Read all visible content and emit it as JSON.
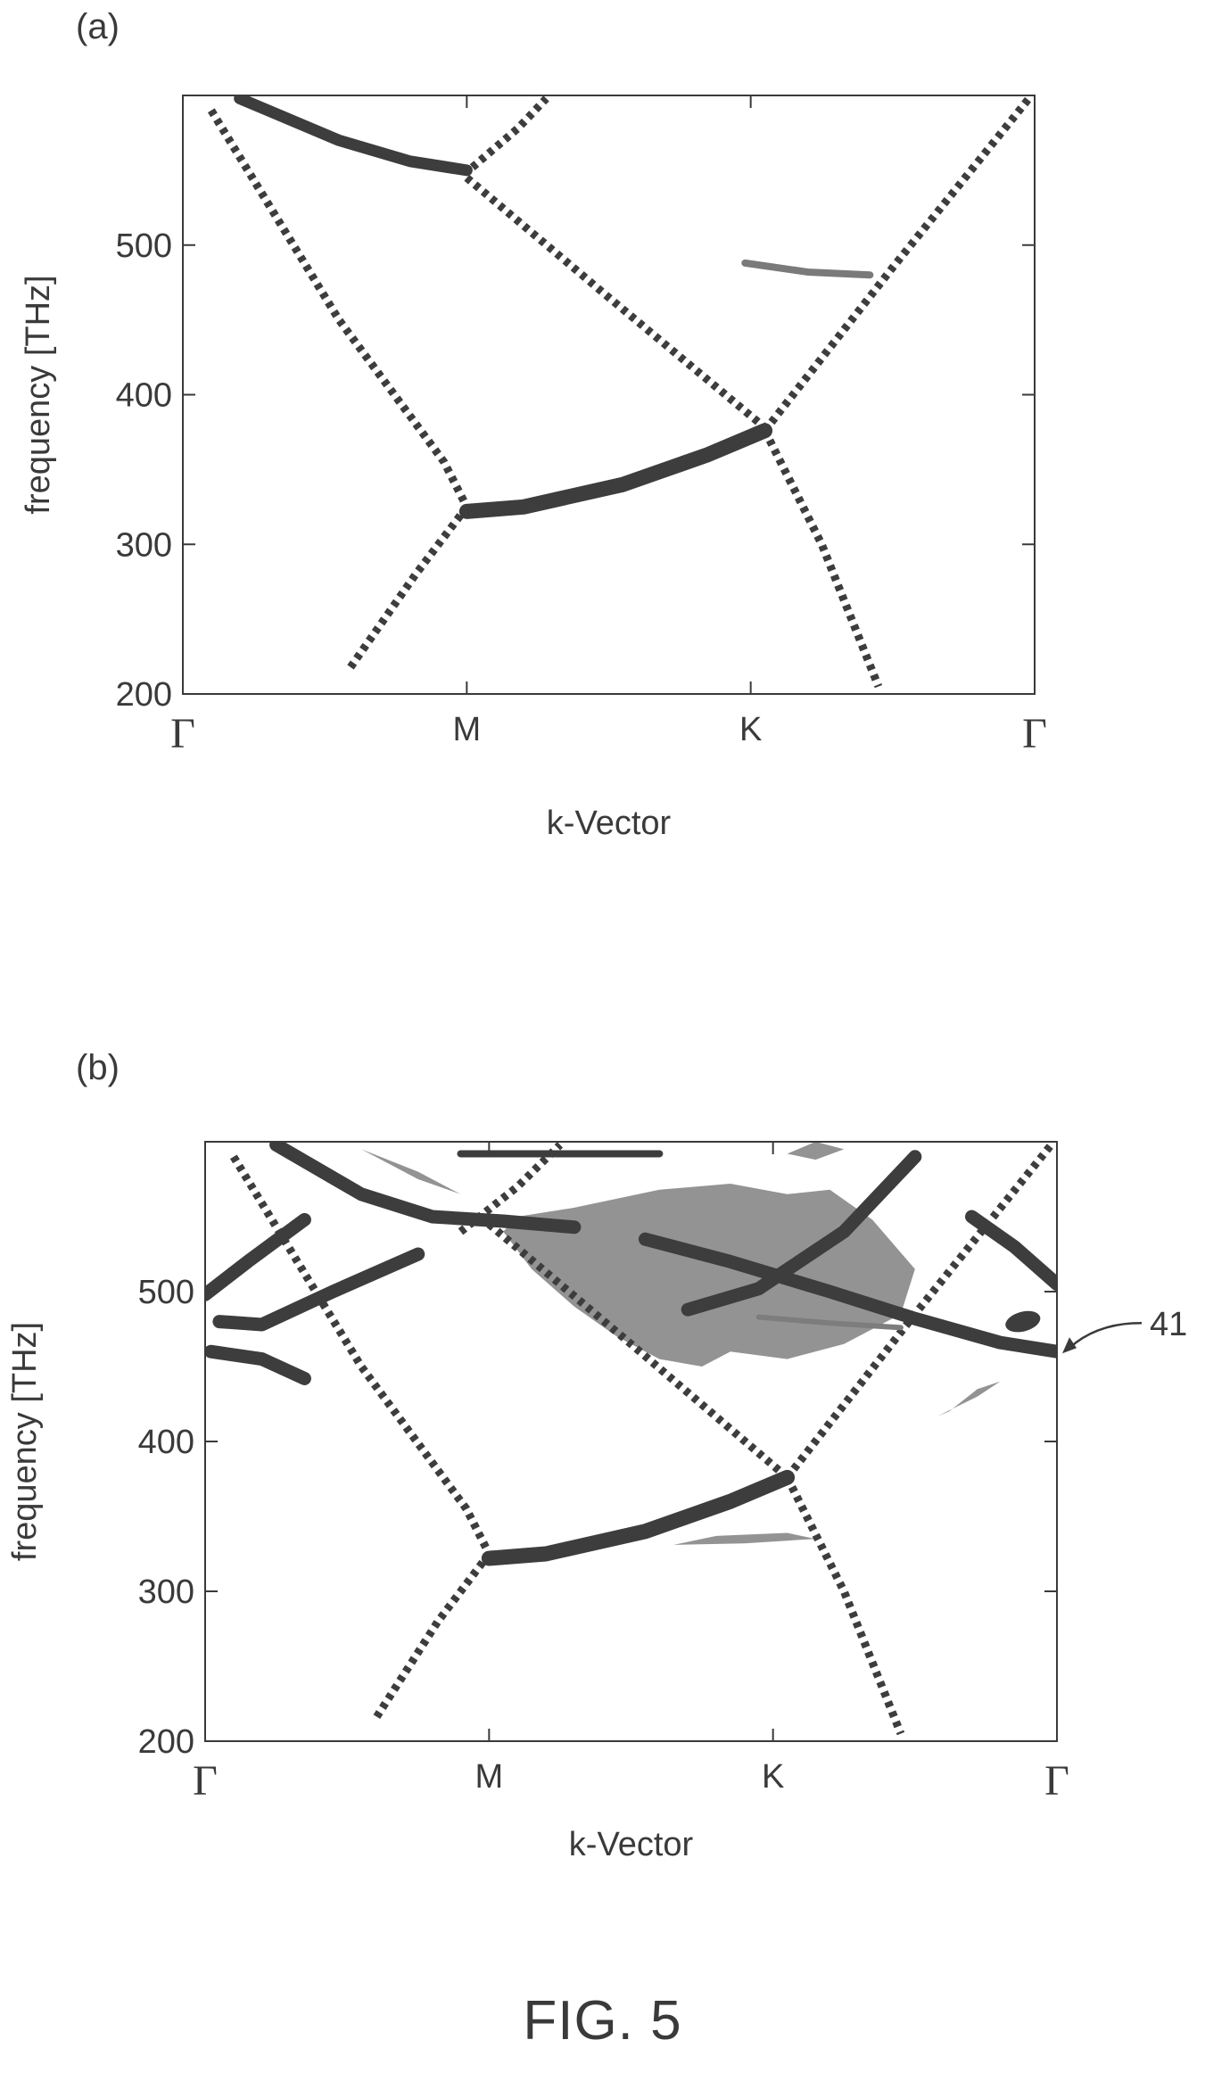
{
  "figure": {
    "panel_a_label": "(a)",
    "panel_b_label": "(b)",
    "caption": "FIG. 5",
    "callout_label": "41"
  },
  "chart_data": [
    {
      "panel": "(a)",
      "type": "line",
      "xlabel": "k-Vector",
      "ylabel": "frequency [THz]",
      "ylim": [
        200,
        600
      ],
      "yticks": [
        200,
        300,
        400,
        500
      ],
      "xticks": [
        {
          "label": "Γ",
          "x": 0
        },
        {
          "label": "M",
          "x": 1
        },
        {
          "label": "K",
          "x": 2
        },
        {
          "label": "Γ",
          "x": 3
        }
      ],
      "grid": false,
      "colors": {
        "dark": "#3d3d3d",
        "mid": "#7a7a7a"
      },
      "series": [
        {
          "style": "dashed",
          "width": 9,
          "color": "dark",
          "x": [
            0.1,
            0.55,
            0.92,
            1.0
          ],
          "y": [
            590,
            450,
            355,
            325
          ]
        },
        {
          "style": "dashed",
          "width": 9,
          "color": "dark",
          "x": [
            1.0,
            0.82,
            0.58
          ],
          "y": [
            325,
            280,
            215
          ]
        },
        {
          "style": "solid",
          "width": 13,
          "color": "dark",
          "x": [
            0.2,
            0.55,
            0.8,
            1.0
          ],
          "y": [
            598,
            570,
            556,
            550
          ]
        },
        {
          "style": "dashed",
          "width": 9,
          "color": "dark",
          "x": [
            1.02,
            1.18,
            1.28
          ],
          "y": [
            552,
            578,
            598
          ]
        },
        {
          "style": "dashed",
          "width": 9,
          "color": "dark",
          "x": [
            1.0,
            1.5,
            2.05
          ],
          "y": [
            545,
            465,
            378
          ]
        },
        {
          "style": "solid",
          "width": 17,
          "color": "dark",
          "x": [
            1.0,
            1.2,
            1.55,
            1.85,
            2.05
          ],
          "y": [
            322,
            325,
            340,
            360,
            376
          ]
        },
        {
          "style": "dashed",
          "width": 9,
          "color": "dark",
          "x": [
            2.05,
            2.5,
            2.98
          ],
          "y": [
            376,
            485,
            598
          ]
        },
        {
          "style": "dashed",
          "width": 9,
          "color": "dark",
          "x": [
            2.05,
            2.25,
            2.45
          ],
          "y": [
            376,
            300,
            205
          ]
        },
        {
          "style": "solid",
          "width": 8,
          "color": "mid",
          "x": [
            1.98,
            2.2,
            2.42
          ],
          "y": [
            488,
            482,
            480
          ]
        }
      ]
    },
    {
      "panel": "(b)",
      "type": "line",
      "xlabel": "k-Vector",
      "ylabel": "frequency [THz]",
      "ylim": [
        200,
        600
      ],
      "yticks": [
        200,
        300,
        400,
        500
      ],
      "xticks": [
        {
          "label": "Γ",
          "x": 0
        },
        {
          "label": "M",
          "x": 1
        },
        {
          "label": "K",
          "x": 2
        },
        {
          "label": "Γ",
          "x": 3
        }
      ],
      "grid": false,
      "colors": {
        "dark": "#3d3d3d",
        "mid": "#7d7d7d",
        "light": "#939393"
      },
      "annotation": {
        "text": "41",
        "target": {
          "x": 3.0,
          "y": 460
        }
      },
      "series": [
        {
          "style": "dashed",
          "width": 9,
          "color": "dark",
          "x": [
            0.1,
            0.55,
            0.92,
            1.0
          ],
          "y": [
            590,
            450,
            355,
            325
          ]
        },
        {
          "style": "dashed",
          "width": 9,
          "color": "dark",
          "x": [
            1.0,
            0.82,
            0.6
          ],
          "y": [
            325,
            280,
            215
          ]
        },
        {
          "style": "solid",
          "width": 15,
          "color": "dark",
          "x": [
            0.25,
            0.55,
            0.8,
            1.05,
            1.3
          ],
          "y": [
            598,
            565,
            550,
            547,
            543
          ]
        },
        {
          "style": "dashed",
          "width": 9,
          "color": "dark",
          "x": [
            0.9,
            1.1,
            1.25
          ],
          "y": [
            540,
            570,
            598
          ]
        },
        {
          "style": "solid",
          "width": 8,
          "color": "dark",
          "x": [
            0.9,
            1.6
          ],
          "y": [
            592,
            592
          ]
        },
        {
          "style": "dashed",
          "width": 9,
          "color": "dark",
          "x": [
            1.0,
            1.5,
            2.05
          ],
          "y": [
            545,
            465,
            376
          ]
        },
        {
          "style": "solid",
          "width": 17,
          "color": "dark",
          "x": [
            1.0,
            1.2,
            1.55,
            1.85,
            2.05
          ],
          "y": [
            322,
            325,
            340,
            360,
            376
          ]
        },
        {
          "style": "dashed",
          "width": 9,
          "color": "dark",
          "x": [
            2.05,
            2.5,
            2.98
          ],
          "y": [
            376,
            485,
            598
          ]
        },
        {
          "style": "dashed",
          "width": 9,
          "color": "dark",
          "x": [
            2.05,
            2.25,
            2.45
          ],
          "y": [
            376,
            300,
            205
          ]
        },
        {
          "style": "solid",
          "width": 15,
          "color": "dark",
          "x": [
            1.55,
            1.85,
            2.2,
            2.5,
            2.8,
            3.0
          ],
          "y": [
            535,
            520,
            500,
            482,
            466,
            460
          ]
        },
        {
          "style": "solid",
          "width": 15,
          "color": "dark",
          "x": [
            1.7,
            1.95,
            2.25,
            2.5
          ],
          "y": [
            488,
            502,
            540,
            590
          ]
        },
        {
          "style": "solid",
          "width": 15,
          "color": "dark",
          "x": [
            0.0,
            0.15,
            0.35
          ],
          "y": [
            498,
            520,
            548
          ]
        },
        {
          "style": "solid",
          "width": 15,
          "color": "dark",
          "x": [
            0.05,
            0.2,
            0.45,
            0.75
          ],
          "y": [
            480,
            478,
            500,
            525
          ]
        },
        {
          "style": "solid",
          "width": 15,
          "color": "dark",
          "x": [
            0.02,
            0.2,
            0.35
          ],
          "y": [
            460,
            455,
            442
          ]
        },
        {
          "style": "solid",
          "width": 15,
          "color": "dark",
          "x": [
            2.7,
            2.85,
            3.0
          ],
          "y": [
            550,
            530,
            505
          ]
        },
        {
          "style": "solid",
          "width": 6,
          "color": "mid",
          "x": [
            1.95,
            2.2,
            2.45
          ],
          "y": [
            483,
            479,
            476
          ]
        }
      ],
      "regions": [
        {
          "color": "light",
          "x": [
            1.1,
            1.3,
            1.6,
            1.85,
            2.05,
            2.2,
            2.35,
            2.5,
            2.45,
            2.25,
            2.05,
            1.85,
            1.75,
            1.6,
            1.45,
            1.3,
            1.15,
            1.05
          ],
          "y": [
            550,
            556,
            568,
            572,
            565,
            568,
            548,
            515,
            485,
            465,
            455,
            460,
            450,
            455,
            470,
            490,
            515,
            540
          ]
        },
        {
          "color": "light",
          "x": [
            0.55,
            0.75,
            0.9,
            0.75,
            0.6
          ],
          "y": [
            595,
            580,
            565,
            575,
            590
          ]
        },
        {
          "color": "light",
          "x": [
            2.05,
            2.15,
            2.25,
            2.15
          ],
          "y": [
            592,
            600,
            595,
            588
          ]
        },
        {
          "color": "light",
          "x": [
            1.65,
            1.9,
            2.15,
            2.05,
            1.8
          ],
          "y": [
            331,
            332,
            335,
            339,
            337
          ]
        },
        {
          "color": "light",
          "x": [
            2.58,
            2.72,
            2.8,
            2.72,
            2.62
          ],
          "y": [
            417,
            430,
            440,
            435,
            420
          ]
        }
      ],
      "markers": [
        {
          "shape": "ellipse",
          "color": "dark",
          "x": 2.88,
          "y": 480
        }
      ]
    }
  ]
}
